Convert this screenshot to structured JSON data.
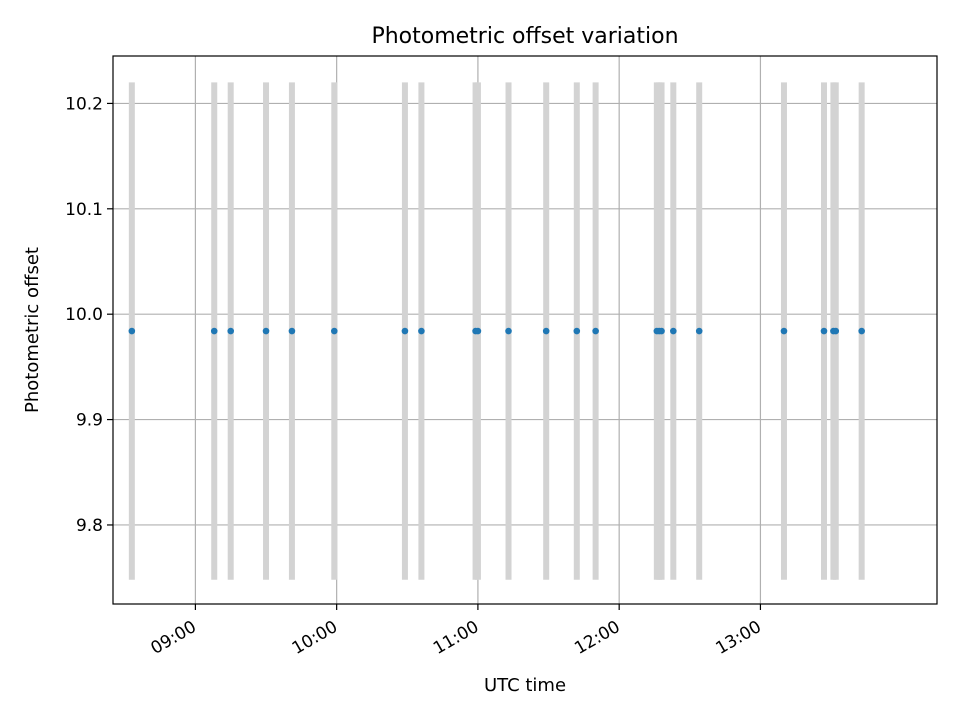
{
  "chart_data": {
    "type": "scatter",
    "title": "Photometric offset variation",
    "xlabel": "UTC time",
    "ylabel": "Photometric offset",
    "x_range": [
      "08:25",
      "14:15"
    ],
    "ylim": [
      9.725,
      10.245
    ],
    "grid": true,
    "x_ticks": [
      "09:00",
      "10:00",
      "11:00",
      "12:00",
      "13:00"
    ],
    "y_ticks": [
      9.8,
      9.9,
      10.0,
      10.1,
      10.2
    ],
    "y_tick_labels": [
      "9.8",
      "9.9",
      "10.0",
      "10.1",
      "10.2"
    ],
    "error_bar": {
      "low": 9.748,
      "high": 10.22
    },
    "points": [
      {
        "t": "08:33",
        "y": 9.984
      },
      {
        "t": "09:08",
        "y": 9.984
      },
      {
        "t": "09:15",
        "y": 9.984
      },
      {
        "t": "09:30",
        "y": 9.984
      },
      {
        "t": "09:41",
        "y": 9.984
      },
      {
        "t": "09:59",
        "y": 9.984
      },
      {
        "t": "10:29",
        "y": 9.984
      },
      {
        "t": "10:36",
        "y": 9.984
      },
      {
        "t": "10:59",
        "y": 9.984
      },
      {
        "t": "11:00",
        "y": 9.984
      },
      {
        "t": "11:13",
        "y": 9.984
      },
      {
        "t": "11:29",
        "y": 9.984
      },
      {
        "t": "11:42",
        "y": 9.984
      },
      {
        "t": "11:50",
        "y": 9.984
      },
      {
        "t": "12:16",
        "y": 9.984
      },
      {
        "t": "12:17",
        "y": 9.984
      },
      {
        "t": "12:18",
        "y": 9.984
      },
      {
        "t": "12:23",
        "y": 9.984
      },
      {
        "t": "12:34",
        "y": 9.984
      },
      {
        "t": "13:10",
        "y": 9.984
      },
      {
        "t": "13:27",
        "y": 9.984
      },
      {
        "t": "13:31",
        "y": 9.984
      },
      {
        "t": "13:32",
        "y": 9.984
      },
      {
        "t": "13:43",
        "y": 9.984
      }
    ],
    "colors": {
      "point": "#1f77b4",
      "error_bar": "#d3d3d3",
      "grid": "#b0b0b0"
    }
  }
}
